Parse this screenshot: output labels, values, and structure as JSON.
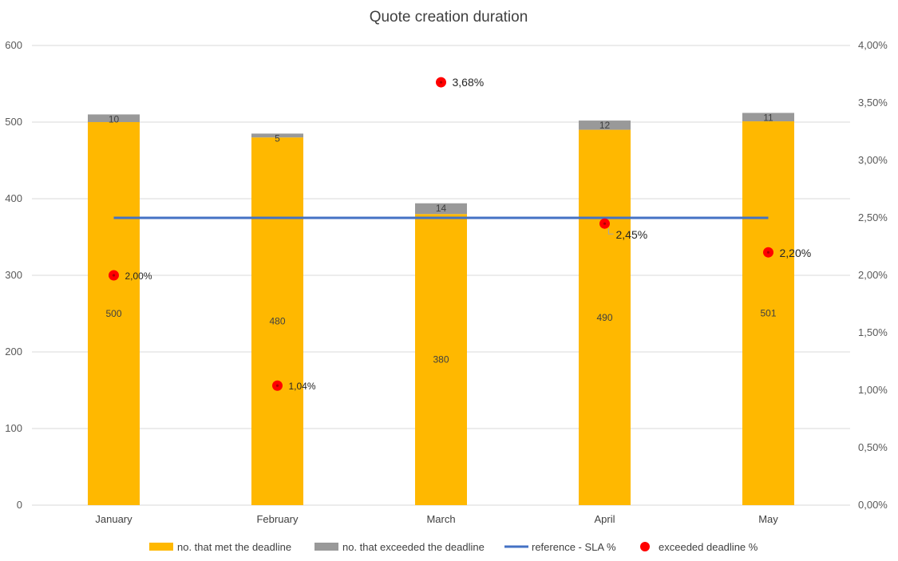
{
  "chart_data": {
    "type": "bar",
    "title": "Quote creation duration",
    "categories": [
      "January",
      "February",
      "March",
      "April",
      "May"
    ],
    "stacked": true,
    "series": [
      {
        "name": "no. that met the deadline",
        "kind": "bar",
        "axis": "left",
        "color": "#FFB800",
        "values": [
          500,
          480,
          380,
          490,
          501
        ]
      },
      {
        "name": "no. that exceeded the deadline",
        "kind": "bar",
        "axis": "left",
        "color": "#999999",
        "values": [
          10,
          5,
          14,
          12,
          11
        ]
      },
      {
        "name": "reference - SLA %",
        "kind": "line",
        "axis": "right",
        "color": "#4472C4",
        "values": [
          2.5,
          2.5,
          2.5,
          2.5,
          2.5
        ]
      },
      {
        "name": "exceeded deadline %",
        "kind": "marker",
        "axis": "right",
        "color": "#FF0000",
        "values": [
          2.0,
          1.04,
          3.68,
          2.45,
          2.2
        ],
        "labels": [
          "2,00%",
          "1,04%",
          "3,68%",
          "2,45%",
          "2,20%"
        ]
      }
    ],
    "ylim": [
      0,
      600
    ],
    "yticks": [
      "0",
      "100",
      "200",
      "300",
      "400",
      "500",
      "600"
    ],
    "y2lim": [
      0,
      4
    ],
    "y2ticks": [
      "0,00%",
      "0,50%",
      "1,00%",
      "1,50%",
      "2,00%",
      "2,50%",
      "3,00%",
      "3,50%",
      "4,00%"
    ],
    "grid": true,
    "legend_position": "bottom"
  }
}
